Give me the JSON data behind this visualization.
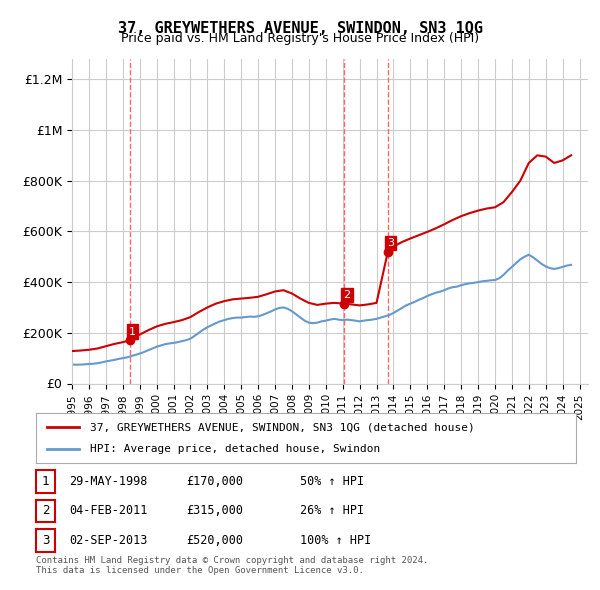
{
  "title": "37, GREYWETHERS AVENUE, SWINDON, SN3 1QG",
  "subtitle": "Price paid vs. HM Land Registry's House Price Index (HPI)",
  "ylabel": "",
  "xlabel": "",
  "xlim": [
    1995.0,
    2025.5
  ],
  "ylim": [
    0,
    1280000
  ],
  "yticks": [
    0,
    200000,
    400000,
    600000,
    800000,
    1000000,
    1200000
  ],
  "ytick_labels": [
    "£0",
    "£200K",
    "£400K",
    "£600K",
    "£800K",
    "£1M",
    "£1.2M"
  ],
  "xticks": [
    1995,
    1996,
    1997,
    1998,
    1999,
    2000,
    2001,
    2002,
    2003,
    2004,
    2005,
    2006,
    2007,
    2008,
    2009,
    2010,
    2011,
    2012,
    2013,
    2014,
    2015,
    2016,
    2017,
    2018,
    2019,
    2020,
    2021,
    2022,
    2023,
    2024,
    2025
  ],
  "sales": [
    {
      "number": 1,
      "year": 1998.41,
      "price": 170000,
      "date": "29-MAY-1998",
      "pct": "50%",
      "direction": "↑"
    },
    {
      "number": 2,
      "year": 2011.09,
      "price": 315000,
      "date": "04-FEB-2011",
      "pct": "26%",
      "direction": "↑"
    },
    {
      "number": 3,
      "year": 2013.67,
      "price": 520000,
      "date": "02-SEP-2013",
      "pct": "100%",
      "direction": "↑"
    }
  ],
  "legend_property": "37, GREYWETHERS AVENUE, SWINDON, SN3 1QG (detached house)",
  "legend_hpi": "HPI: Average price, detached house, Swindon",
  "footer": "Contains HM Land Registry data © Crown copyright and database right 2024.\nThis data is licensed under the Open Government Licence v3.0.",
  "property_line_color": "#cc0000",
  "hpi_line_color": "#6699cc",
  "sale_marker_color": "#cc0000",
  "vline_color": "#ff6666",
  "background_color": "#ffffff",
  "grid_color": "#cccccc",
  "hpi_data_x": [
    1995.0,
    1995.25,
    1995.5,
    1995.75,
    1996.0,
    1996.25,
    1996.5,
    1996.75,
    1997.0,
    1997.25,
    1997.5,
    1997.75,
    1998.0,
    1998.25,
    1998.5,
    1998.75,
    1999.0,
    1999.25,
    1999.5,
    1999.75,
    2000.0,
    2000.25,
    2000.5,
    2000.75,
    2001.0,
    2001.25,
    2001.5,
    2001.75,
    2002.0,
    2002.25,
    2002.5,
    2002.75,
    2003.0,
    2003.25,
    2003.5,
    2003.75,
    2004.0,
    2004.25,
    2004.5,
    2004.75,
    2005.0,
    2005.25,
    2005.5,
    2005.75,
    2006.0,
    2006.25,
    2006.5,
    2006.75,
    2007.0,
    2007.25,
    2007.5,
    2007.75,
    2008.0,
    2008.25,
    2008.5,
    2008.75,
    2009.0,
    2009.25,
    2009.5,
    2009.75,
    2010.0,
    2010.25,
    2010.5,
    2010.75,
    2011.0,
    2011.25,
    2011.5,
    2011.75,
    2012.0,
    2012.25,
    2012.5,
    2012.75,
    2013.0,
    2013.25,
    2013.5,
    2013.75,
    2014.0,
    2014.25,
    2014.5,
    2014.75,
    2015.0,
    2015.25,
    2015.5,
    2015.75,
    2016.0,
    2016.25,
    2016.5,
    2016.75,
    2017.0,
    2017.25,
    2017.5,
    2017.75,
    2018.0,
    2018.25,
    2018.5,
    2018.75,
    2019.0,
    2019.25,
    2019.5,
    2019.75,
    2020.0,
    2020.25,
    2020.5,
    2020.75,
    2021.0,
    2021.25,
    2021.5,
    2021.75,
    2022.0,
    2022.25,
    2022.5,
    2022.75,
    2023.0,
    2023.25,
    2023.5,
    2023.75,
    2024.0,
    2024.25,
    2024.5
  ],
  "hpi_data_y": [
    75000,
    74000,
    74500,
    75500,
    77000,
    78000,
    80000,
    83000,
    87000,
    90000,
    93000,
    97000,
    100000,
    103000,
    108000,
    113000,
    118000,
    124000,
    131000,
    138000,
    145000,
    150000,
    155000,
    158000,
    160000,
    163000,
    167000,
    171000,
    177000,
    188000,
    200000,
    212000,
    222000,
    230000,
    238000,
    245000,
    250000,
    255000,
    258000,
    260000,
    260000,
    262000,
    264000,
    263000,
    265000,
    270000,
    277000,
    284000,
    292000,
    298000,
    300000,
    295000,
    285000,
    273000,
    260000,
    248000,
    240000,
    238000,
    240000,
    245000,
    248000,
    252000,
    255000,
    252000,
    250000,
    252000,
    250000,
    248000,
    245000,
    248000,
    250000,
    252000,
    255000,
    260000,
    265000,
    270000,
    278000,
    288000,
    298000,
    308000,
    315000,
    322000,
    330000,
    337000,
    345000,
    352000,
    358000,
    362000,
    368000,
    375000,
    380000,
    382000,
    388000,
    392000,
    395000,
    397000,
    400000,
    403000,
    405000,
    407000,
    408000,
    415000,
    428000,
    445000,
    460000,
    475000,
    490000,
    500000,
    508000,
    498000,
    485000,
    472000,
    462000,
    455000,
    452000,
    455000,
    460000,
    465000,
    468000
  ],
  "property_data_x": [
    1995.0,
    1995.5,
    1996.0,
    1996.5,
    1997.0,
    1997.5,
    1998.0,
    1998.41,
    1998.5,
    1999.0,
    1999.5,
    2000.0,
    2000.5,
    2001.0,
    2001.5,
    2002.0,
    2002.5,
    2003.0,
    2003.5,
    2004.0,
    2004.5,
    2005.0,
    2005.5,
    2006.0,
    2006.5,
    2007.0,
    2007.5,
    2008.0,
    2008.5,
    2009.0,
    2009.5,
    2010.0,
    2010.5,
    2011.09,
    2011.5,
    2012.0,
    2012.5,
    2013.0,
    2013.67,
    2014.0,
    2014.5,
    2015.0,
    2015.5,
    2016.0,
    2016.5,
    2017.0,
    2017.5,
    2018.0,
    2018.5,
    2019.0,
    2019.5,
    2020.0,
    2020.5,
    2021.0,
    2021.5,
    2022.0,
    2022.5,
    2023.0,
    2023.5,
    2024.0,
    2024.5
  ],
  "property_data_y": [
    128000,
    130000,
    133000,
    138000,
    147000,
    156000,
    163000,
    170000,
    178000,
    193000,
    210000,
    225000,
    235000,
    242000,
    250000,
    262000,
    282000,
    300000,
    315000,
    325000,
    332000,
    335000,
    338000,
    342000,
    352000,
    363000,
    368000,
    355000,
    335000,
    318000,
    310000,
    315000,
    318000,
    315000,
    312000,
    308000,
    312000,
    318000,
    520000,
    540000,
    558000,
    572000,
    585000,
    598000,
    612000,
    628000,
    645000,
    660000,
    672000,
    682000,
    690000,
    695000,
    715000,
    755000,
    800000,
    870000,
    900000,
    895000,
    870000,
    880000,
    900000
  ]
}
